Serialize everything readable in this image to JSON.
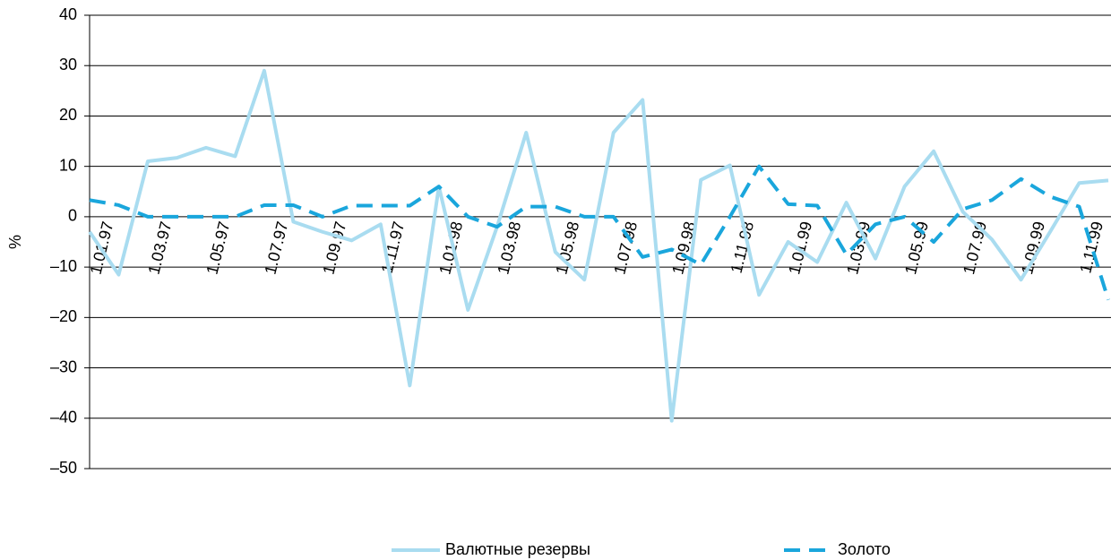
{
  "chart_data": {
    "type": "line",
    "y_label": "%",
    "categories": [
      "1.01.97",
      null,
      "1.03.97",
      null,
      "1.05.97",
      null,
      "1.07.97",
      null,
      "1.09.97",
      null,
      "1.11.97",
      null,
      "1.01.98",
      null,
      "1.03.98",
      null,
      "1.05.98",
      null,
      "1.07.98",
      null,
      "1.09.98",
      null,
      "1.11.98",
      null,
      "1.01.99",
      null,
      "1.03.99",
      null,
      "1.05.99",
      null,
      "1.07.99",
      null,
      "1.09.99",
      null,
      "1.11.99",
      null
    ],
    "series": [
      {
        "name": "Валютные резервы",
        "color": "#a9dcf0",
        "style": "solid",
        "values": [
          -3,
          -11.5,
          11,
          11.7,
          13.7,
          12,
          29,
          -1,
          -3,
          -4.7,
          -1.5,
          -33.5,
          6,
          -18.5,
          -2,
          16.7,
          -7,
          -12.5,
          16.7,
          23.2,
          -40.5,
          7.3,
          10.2,
          -15.5,
          -5,
          -9,
          2.8,
          -8.3,
          6,
          13,
          1,
          -4.5,
          -12.5,
          -3,
          6.7,
          7.2
        ]
      },
      {
        "name": "Золото",
        "color": "#1aa6dc",
        "style": "dashed",
        "values": [
          3.3,
          2.3,
          0,
          0,
          0,
          0,
          2.3,
          2.3,
          0,
          2.2,
          2.2,
          2.2,
          6,
          0,
          -2,
          2,
          2,
          0,
          0,
          -8,
          -6.5,
          -9.5,
          0,
          10,
          2.5,
          2.2,
          -7.5,
          -1.5,
          0,
          -5,
          1.5,
          3.3,
          7.5,
          4,
          2,
          -16.5
        ]
      }
    ],
    "ylim": [
      -50,
      40
    ],
    "yticks": [
      {
        "value": -50,
        "label": "–50"
      },
      {
        "value": -40,
        "label": "–40"
      },
      {
        "value": -30,
        "label": "–30"
      },
      {
        "value": -20,
        "label": "–20"
      },
      {
        "value": -10,
        "label": "–10"
      },
      0,
      10,
      20,
      30,
      40
    ],
    "grid": true,
    "legend": "bottom"
  }
}
